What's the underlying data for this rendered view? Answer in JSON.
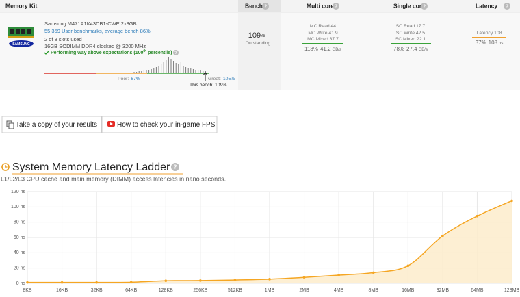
{
  "header": {
    "columns": [
      "Memory Kit",
      "Bench",
      "Multi core",
      "Single core",
      "Latency"
    ]
  },
  "help_icon": "?",
  "kit": {
    "logo": "SAMSUNG",
    "name": "Samsung M471A1K43DB1-CWE 2x8GB",
    "benchmarks": "55,359 User benchmarks, average bench 86%",
    "slots": "2 of 8 slots used",
    "spec": "16GB SODIMM DDR4 clocked @ 3200 MHz",
    "performance": "Performing way above expectations (100",
    "performance_sup": "th",
    "performance_end": " percentile)"
  },
  "distribution": {
    "values": [
      1,
      1,
      2,
      2,
      3,
      3,
      4,
      5,
      6,
      8,
      10,
      13,
      15,
      18,
      22,
      20,
      17,
      14,
      12,
      16,
      10,
      8,
      7,
      6,
      5,
      4,
      3,
      3,
      2,
      2
    ],
    "poor": "Poor:",
    "poor_value": "67%",
    "great": "Great:",
    "great_value": "105%",
    "this_bench": "This bench: 109%"
  },
  "bench": {
    "score": "109",
    "unit": "%",
    "rating": "Outstanding"
  },
  "multi_core": {
    "lines": [
      "MC Read 44",
      "MC Write 41.9",
      "MC Mixed 37.7"
    ],
    "percent": "118%",
    "value": "41.2",
    "unit": "GB/s"
  },
  "single_core": {
    "lines": [
      "SC Read 17.7",
      "SC Write 42.5",
      "SC Mixed 22.1"
    ],
    "percent": "78%",
    "value": "27.4",
    "unit": "GB/s"
  },
  "latency": {
    "lines": [
      "Latency 108"
    ],
    "percent": "37%",
    "value": "108",
    "unit": "ns"
  },
  "buttons": [
    "Take a copy of your results",
    "How to check your in-game FPS"
  ],
  "section": {
    "title": "System Memory Latency Ladder",
    "subtitle": "L1/L2/L3 CPU cache and main memory (DIMM) access latencies in nano seconds."
  },
  "chart_data": {
    "type": "area",
    "categories": [
      "8KB",
      "16KB",
      "32KB",
      "64KB",
      "128KB",
      "256KB",
      "512KB",
      "1MB",
      "2MB",
      "4MB",
      "8MB",
      "16MB",
      "32MB",
      "64MB",
      "128MB"
    ],
    "values": [
      1.2,
      1.2,
      1.2,
      1.5,
      3.4,
      3.7,
      4.4,
      5.5,
      7.8,
      10.7,
      14,
      23,
      62,
      88,
      108
    ],
    "color": "#f5a623",
    "fill": "#fdeccb",
    "ylim": [
      0,
      120
    ],
    "yticks": [
      {
        "value": 0,
        "label": "0 ns"
      },
      {
        "value": 20,
        "label": "20 ns"
      },
      {
        "value": 40,
        "label": "40 ns"
      },
      {
        "value": 60,
        "label": "60 ns"
      },
      {
        "value": 80,
        "label": "80 ns"
      },
      {
        "value": 100,
        "label": "100 ns"
      },
      {
        "value": 120,
        "label": "120 ns"
      }
    ],
    "grid": true
  }
}
